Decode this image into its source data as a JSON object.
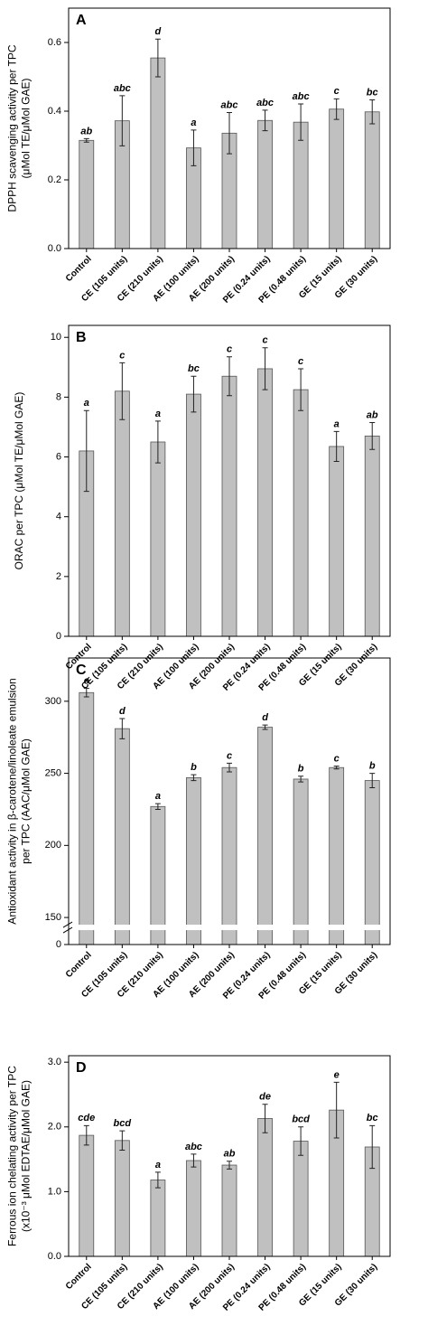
{
  "chart_data": [
    {
      "type": "bar",
      "panel_label": "A",
      "ylabel": [
        "DPPH scavenging activity per TPC",
        "(μMol TE/μMol GAE)"
      ],
      "categories": [
        "Control",
        "CE (105 units)",
        "CE (210 units)",
        "AE (100 units)",
        "AE (200 units)",
        "PE (0.24 units)",
        "PE (0.48 units)",
        "GE (15 units)",
        "GE (30 units)"
      ],
      "values": [
        0.315,
        0.372,
        0.555,
        0.293,
        0.336,
        0.373,
        0.368,
        0.406,
        0.398
      ],
      "errors": [
        0.005,
        0.073,
        0.055,
        0.052,
        0.06,
        0.03,
        0.053,
        0.03,
        0.035
      ],
      "letters": [
        "ab",
        "abc",
        "d",
        "a",
        "abc",
        "abc",
        "abc",
        "c",
        "bc"
      ],
      "color": "#c0c0c0",
      "ylim": [
        0,
        0.7
      ],
      "yticks": [
        {
          "value": 0,
          "label": "0.0"
        },
        0.2,
        0.4,
        0.6
      ]
    },
    {
      "type": "bar",
      "panel_label": "B",
      "ylabel": [
        "ORAC per TPC (μMol TE/μMol GAE)"
      ],
      "categories": [
        "Control",
        "CE (105 units)",
        "CE (210 units)",
        "AE (100 units)",
        "AE (200 units)",
        "PE (0.24 units)",
        "PE (0.48 units)",
        "GE (15 units)",
        "GE (30 units)"
      ],
      "values": [
        6.2,
        8.2,
        6.5,
        8.1,
        8.7,
        8.95,
        8.25,
        6.35,
        6.7
      ],
      "errors": [
        1.35,
        0.95,
        0.7,
        0.6,
        0.65,
        0.7,
        0.7,
        0.5,
        0.45
      ],
      "letters": [
        "a",
        "c",
        "a",
        "bc",
        "c",
        "c",
        "c",
        "a",
        "ab"
      ],
      "color": "#c0c0c0",
      "ylim": [
        0,
        10.4
      ],
      "yticks": [
        0,
        2,
        4,
        6,
        8,
        10
      ]
    },
    {
      "type": "bar",
      "panel_label": "C",
      "ylabel": [
        "Antioxidant activity in β-carotene/linoleate emulsion",
        "per TPC (AAC/μMol GAE)"
      ],
      "categories": [
        "Control",
        "CE (105 units)",
        "CE (210 units)",
        "AE (100 units)",
        "AE (200 units)",
        "PE (0.24 units)",
        "PE (0.48 units)",
        "GE (15 units)",
        "GE (30 units)"
      ],
      "values": [
        306,
        281,
        227,
        247,
        254,
        282,
        246,
        254,
        245
      ],
      "errors": [
        3,
        7,
        2,
        2,
        3,
        1.5,
        2,
        1,
        5
      ],
      "letters": [
        "e",
        "d",
        "a",
        "b",
        "c",
        "d",
        "b",
        "c",
        "b"
      ],
      "color": "#c0c0c0",
      "ylim": [
        0,
        330
      ],
      "ybreak": [
        10,
        145
      ],
      "yticks": [
        0,
        150,
        200,
        250,
        300
      ]
    },
    {
      "type": "bar",
      "panel_label": "D",
      "ylabel": [
        "Ferrous ion chelating activity per TPC",
        "(x10⁻³ μMol EDTAE/μMol GAE)"
      ],
      "categories": [
        "Control",
        "CE (105 units)",
        "CE (210 units)",
        "AE (100 units)",
        "AE (200 units)",
        "PE (0.24 units)",
        "PE (0.48 units)",
        "GE (15 units)",
        "GE (30 units)"
      ],
      "values": [
        1.87,
        1.79,
        1.18,
        1.48,
        1.41,
        2.13,
        1.78,
        2.26,
        1.69
      ],
      "errors": [
        0.15,
        0.15,
        0.12,
        0.1,
        0.06,
        0.22,
        0.22,
        0.43,
        0.33
      ],
      "letters": [
        "cde",
        "bcd",
        "a",
        "abc",
        "ab",
        "de",
        "bcd",
        "e",
        "bc"
      ],
      "color": "#c0c0c0",
      "ylim": [
        0,
        3.1
      ],
      "yticks": [
        {
          "value": 0,
          "label": "0.0"
        },
        {
          "value": 1,
          "label": "1.0"
        },
        {
          "value": 2,
          "label": "2.0"
        },
        {
          "value": 3,
          "label": "3.0"
        }
      ]
    }
  ]
}
